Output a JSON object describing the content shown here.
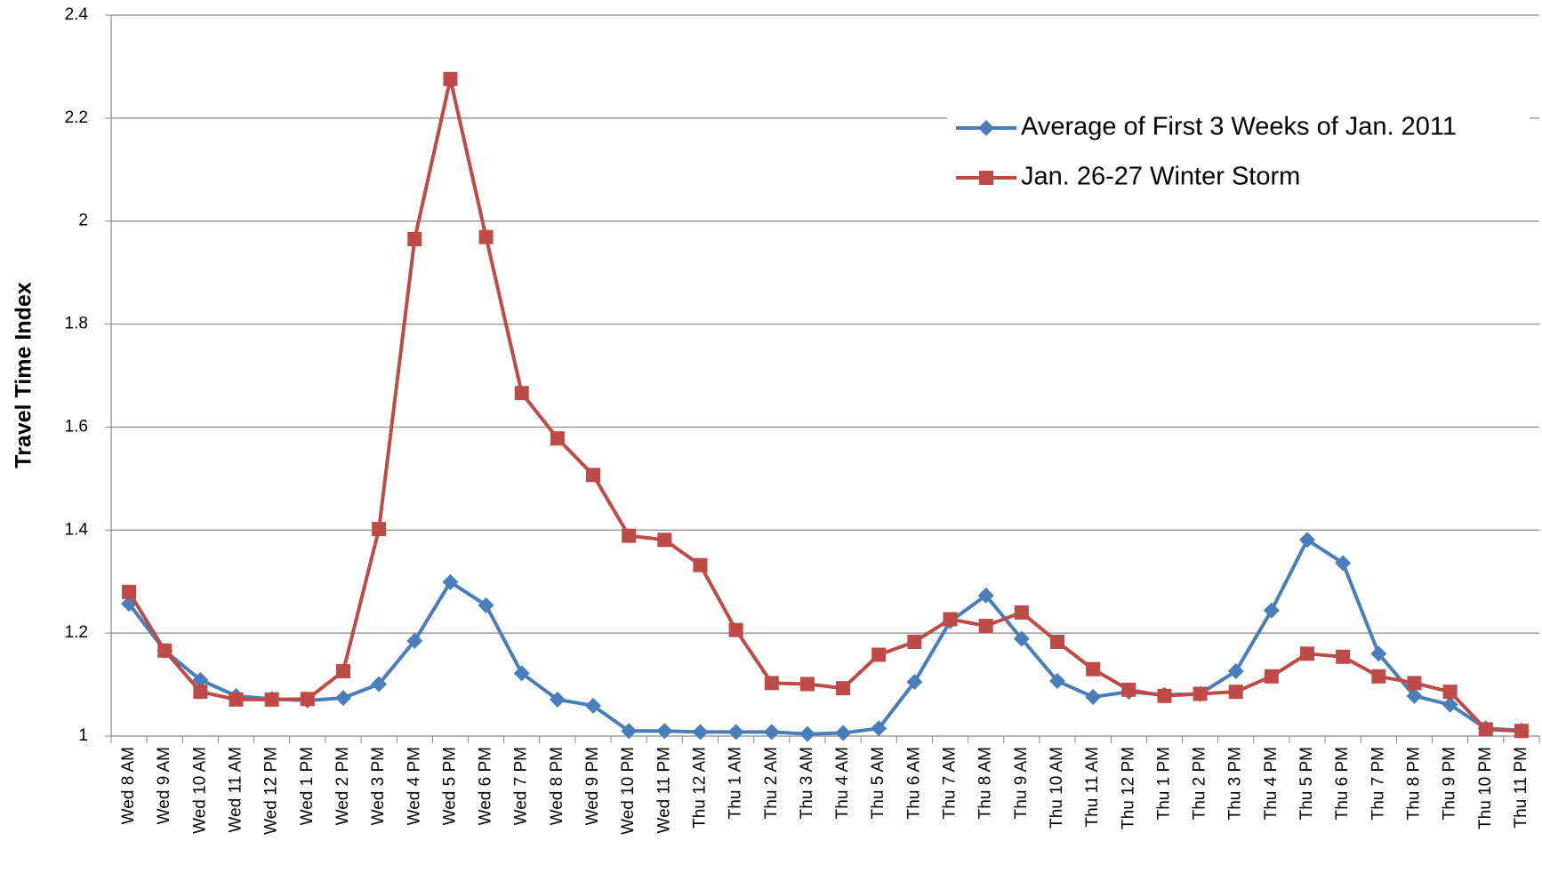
{
  "chart_data": {
    "type": "line",
    "y_label": "Travel Time Index",
    "categories": [
      "Wed 8 AM",
      "Wed 9 AM",
      "Wed 10 AM",
      "Wed 11 AM",
      "Wed 12 PM",
      "Wed 1 PM",
      "Wed 2 PM",
      "Wed 3 PM",
      "Wed 4 PM",
      "Wed 5 PM",
      "Wed 6 PM",
      "Wed 7 PM",
      "Wed 8 PM",
      "Wed 9 PM",
      "Wed 10 PM",
      "Wed 11 PM",
      "Thu 12 AM",
      "Thu 1 AM",
      "Thu 2 AM",
      "Thu 3 AM",
      "Thu 4 AM",
      "Thu 5 AM",
      "Thu 6 AM",
      "Thu 7 AM",
      "Thu 8 AM",
      "Thu 9 AM",
      "Thu 10 AM",
      "Thu 11 AM",
      "Thu 12 PM",
      "Thu 1 PM",
      "Thu 2 PM",
      "Thu 3 PM",
      "Thu 4 PM",
      "Thu 5 PM",
      "Thu 6 PM",
      "Thu 7 PM",
      "Thu 8 PM",
      "Thu 9 PM",
      "Thu 10 PM",
      "Thu 11 PM"
    ],
    "series": [
      {
        "name": "Average of First 3 Weeks of Jan. 2011",
        "color": "#4a7ebb",
        "marker": "diamond",
        "values": [
          1.257,
          1.166,
          1.109,
          1.078,
          1.072,
          1.069,
          1.074,
          1.101,
          1.185,
          1.299,
          1.254,
          1.122,
          1.071,
          1.059,
          1.01,
          1.01,
          1.008,
          1.008,
          1.008,
          1.004,
          1.006,
          1.015,
          1.105,
          1.223,
          1.273,
          1.189,
          1.107,
          1.076,
          1.086,
          1.08,
          1.082,
          1.126,
          1.244,
          1.381,
          1.336,
          1.16,
          1.078,
          1.061,
          1.015,
          1.011
        ]
      },
      {
        "name": "Jan. 26-27 Winter Storm",
        "color": "#be4b48",
        "marker": "square",
        "values": [
          1.28,
          1.166,
          1.086,
          1.071,
          1.071,
          1.072,
          1.126,
          1.402,
          1.965,
          2.276,
          1.969,
          1.666,
          1.578,
          1.507,
          1.389,
          1.381,
          1.332,
          1.206,
          1.103,
          1.101,
          1.093,
          1.158,
          1.183,
          1.227,
          1.214,
          1.24,
          1.183,
          1.13,
          1.09,
          1.078,
          1.082,
          1.086,
          1.116,
          1.16,
          1.154,
          1.116,
          1.103,
          1.086,
          1.013,
          1.01
        ]
      }
    ],
    "ylim": [
      1,
      2.4
    ],
    "yticks": [
      1,
      1.2,
      1.4,
      1.6,
      1.8,
      2,
      2.2,
      2.4
    ],
    "grid": true,
    "legend": "upper right"
  }
}
